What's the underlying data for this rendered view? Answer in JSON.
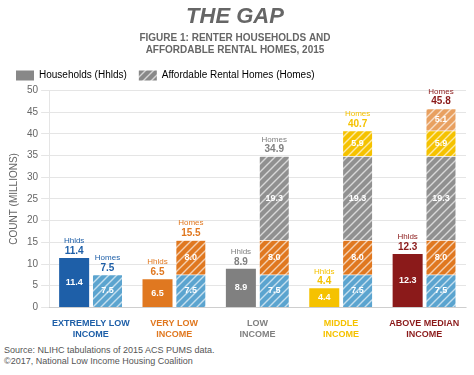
{
  "chart_data": {
    "type": "bar",
    "title": "THE GAP",
    "subtitle": "FIGURE 1: RENTER HOUSEHOLDS AND\nAFFORDABLE RENTAL HOMES, 2015",
    "annotations": [
      "Source: NLIHC tabulations of 2015 ACS PUMS data.\n©2017, National Low Income Housing Coalition"
    ],
    "categories": [
      "EXTREMELY LOW\nINCOME",
      "VERY LOW\nINCOME",
      "LOW\nINCOME",
      "MIDDLE\nINCOME",
      "ABOVE MEDIAN\nINCOME"
    ],
    "ylabel": "COUNT (MILLIONS)",
    "ylim": [
      0,
      50
    ],
    "yticks": [
      0,
      5,
      10,
      15,
      20,
      25,
      30,
      35,
      40,
      45,
      50
    ],
    "grid": true,
    "legend": "upper left",
    "data_labels": true,
    "series": [
      {
        "name": "Households (Hhlds)",
        "short_name": "Hhlds",
        "color": "#888888",
        "colors": [
          "#1E5FA8",
          "#E07820",
          "#808080",
          "#F5C200",
          "#8B1A1A"
        ],
        "values": [
          11.4,
          6.5,
          8.9,
          4.4,
          12.3
        ]
      },
      {
        "name": "Affordable Rental Homes (Homes)",
        "short_name": "Homes",
        "color": "#888888",
        "stacked": true,
        "totals": [
          7.5,
          15.5,
          34.9,
          40.7,
          45.8
        ],
        "segments": [
          {
            "color": "#5BA4CF",
            "values": [
              7.5,
              7.5,
              7.5,
              7.5,
              7.5
            ]
          },
          {
            "color": "#E07820",
            "values": [
              null,
              8.0,
              8.0,
              8.0,
              8.0
            ],
            "value_labels": [
              null,
              "8.0",
              "8.0",
              "8.0",
              "8.0"
            ]
          },
          {
            "color": "#909090",
            "values": [
              null,
              null,
              19.3,
              19.3,
              19.3
            ]
          },
          {
            "color": "#F5C200",
            "values": [
              null,
              null,
              null,
              5.9,
              5.9
            ]
          },
          {
            "color": "#E8A060",
            "values": [
              null,
              null,
              null,
              null,
              5.1
            ]
          }
        ]
      }
    ]
  }
}
